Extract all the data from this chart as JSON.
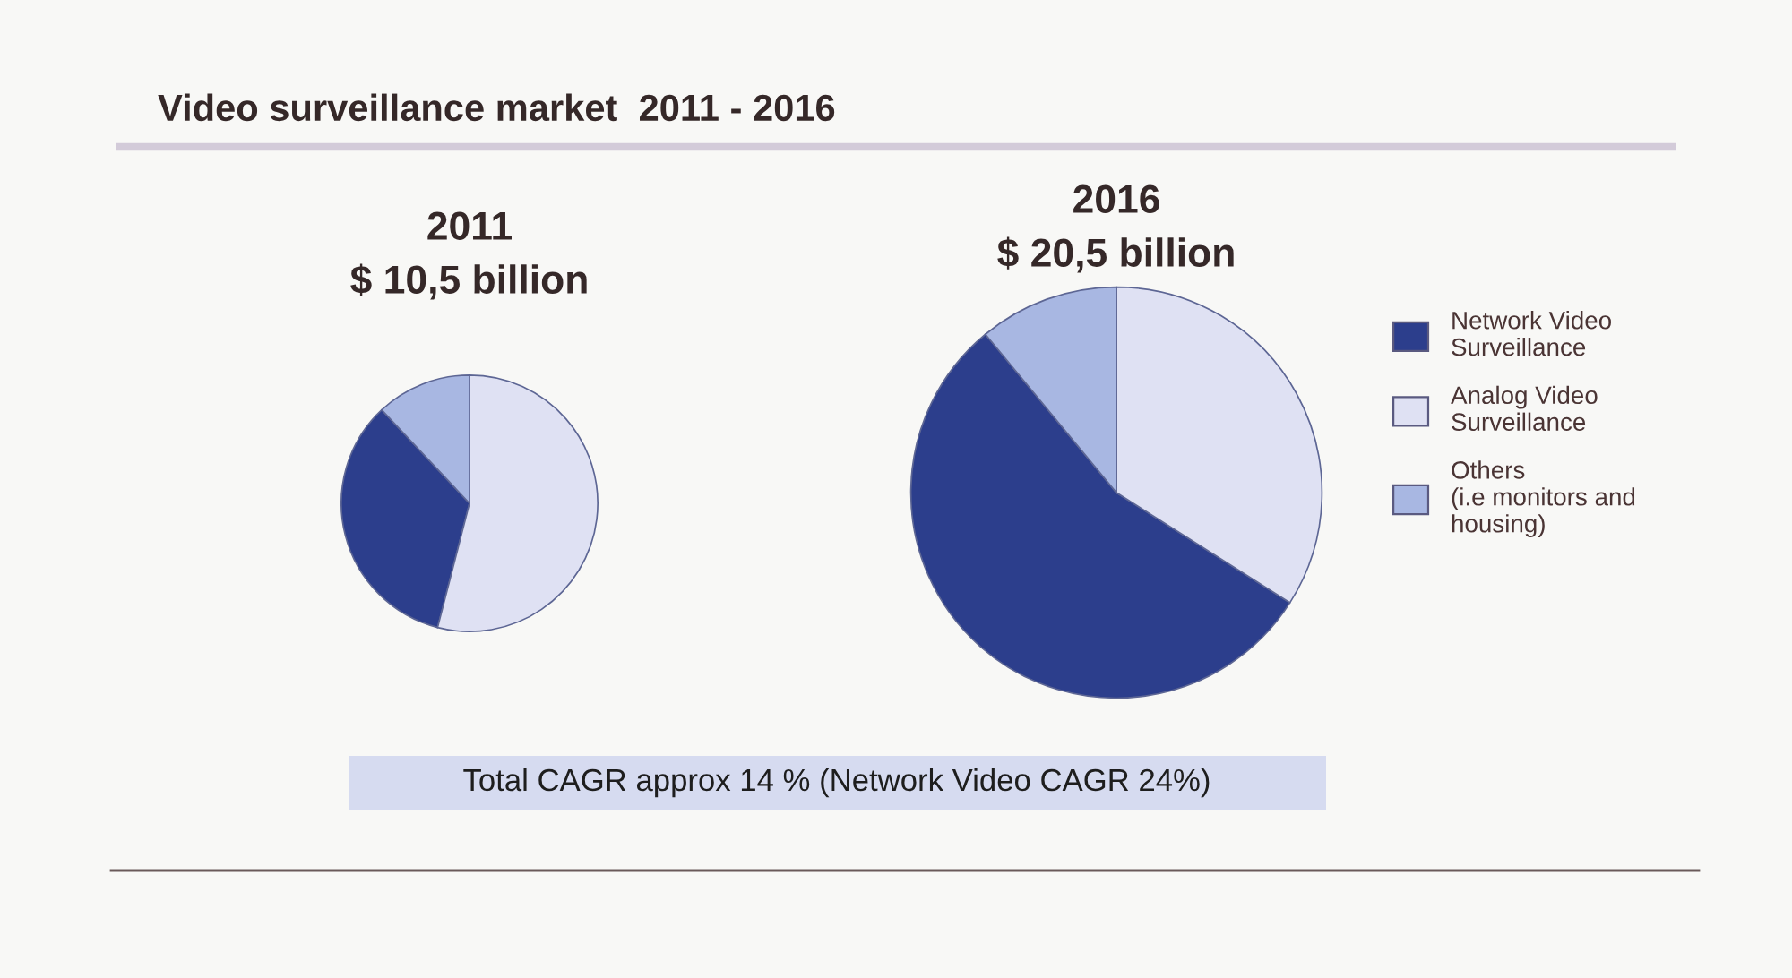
{
  "chart_data": [
    {
      "type": "other",
      "title": "Video surveillance market  2011 - 2016",
      "annotations": [
        "Total CAGR approx 14 % (Network Video CAGR 24%)"
      ]
    },
    {
      "type": "pie",
      "title": "2011",
      "subtitle": "$ 10,5 billion",
      "categories": [
        "Network Video\nSurveillance",
        "Analog Video\nSurveillance",
        "Others\n(i.e monitors and\nhousing)"
      ],
      "values": [
        34,
        54,
        12
      ],
      "colors": [
        "#2c3e8c",
        "#dfe1f3",
        "#a8b7e2"
      ],
      "legend": "right"
    },
    {
      "type": "pie",
      "title": "2016",
      "subtitle": "$ 20,5 billion",
      "categories": [
        null,
        null,
        null
      ],
      "values": [
        55,
        34,
        11
      ],
      "colors": [
        "#2c3e8c",
        "#dfe1f3",
        "#a8b7e2"
      ]
    }
  ]
}
